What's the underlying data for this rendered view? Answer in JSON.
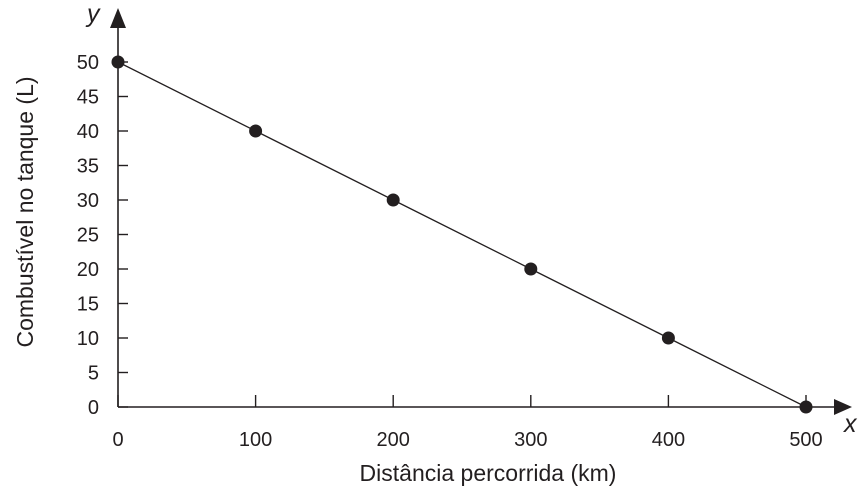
{
  "chart_data": {
    "type": "line",
    "x": [
      0,
      100,
      200,
      300,
      400,
      500
    ],
    "y": [
      50,
      40,
      30,
      20,
      10,
      0
    ],
    "xlabel": "Distância percorrida (km)",
    "ylabel": "Combustível no tanque (L)",
    "x_axis_letter": "x",
    "y_axis_letter": "y",
    "xlim": [
      0,
      500
    ],
    "ylim": [
      0,
      50
    ],
    "x_ticks": [
      0,
      100,
      200,
      300,
      400,
      500
    ],
    "y_ticks": [
      0,
      5,
      10,
      15,
      20,
      25,
      30,
      35,
      40,
      45,
      50
    ],
    "grid": false,
    "colors": {
      "ink": "#231f20"
    }
  }
}
